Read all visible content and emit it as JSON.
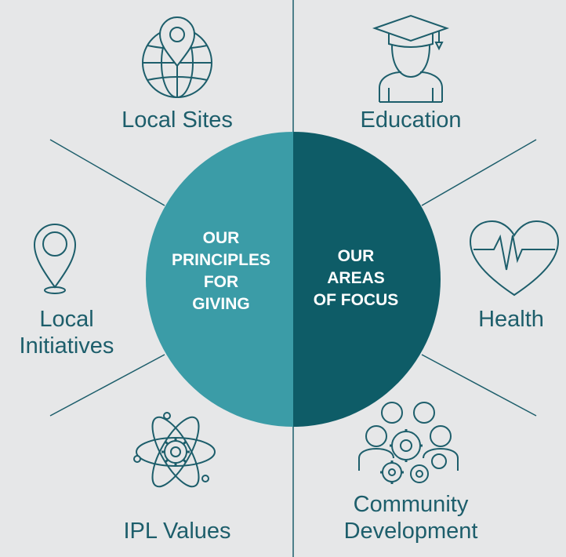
{
  "center": {
    "left_lines": [
      "OUR",
      "PRINCIPLES",
      "FOR",
      "GIVING"
    ],
    "right_lines": [
      "OUR",
      "AREAS",
      "OF FOCUS"
    ]
  },
  "labels": {
    "local_sites": "Local Sites",
    "local_initiatives_line1": "Local",
    "local_initiatives_line2": "Initiatives",
    "ipl_values": "IPL Values",
    "education": "Education",
    "health": "Health",
    "community_line1": "Community",
    "community_line2": "Development"
  },
  "icons": [
    "globe-pin-icon",
    "map-pin-icon",
    "atom-gear-icon",
    "graduate-icon",
    "heartbeat-icon",
    "team-gears-icon"
  ],
  "colors": {
    "background": "#e6e7e8",
    "left_half": "#3b9ca7",
    "right_half": "#0e5c67",
    "line": "#1d5e6b"
  }
}
